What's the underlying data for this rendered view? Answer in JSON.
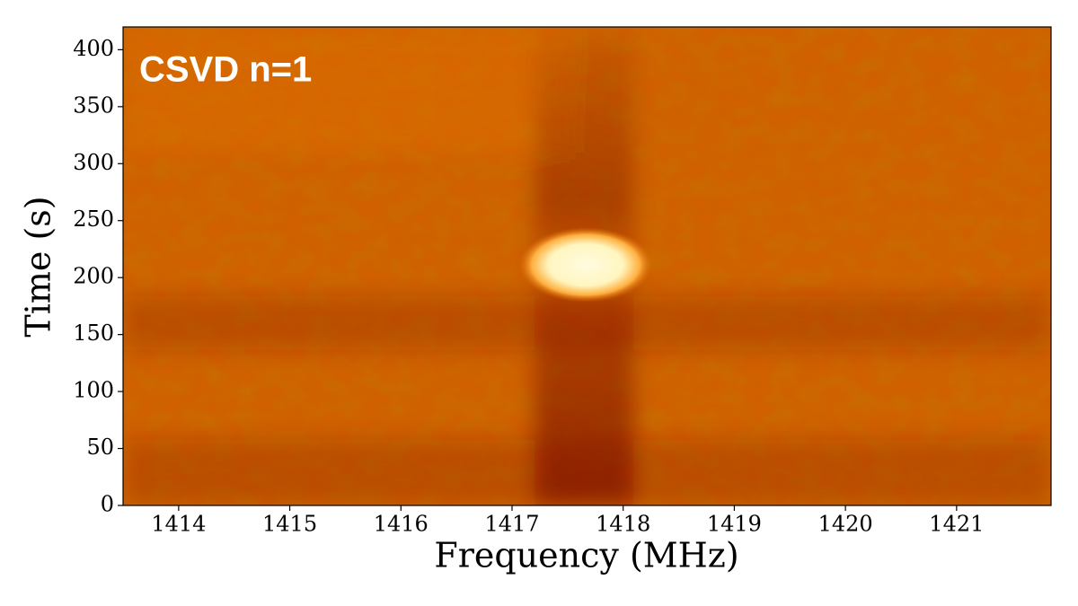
{
  "chart_data": {
    "type": "heatmap",
    "xlabel": "Frequency (MHz)",
    "ylabel": "Time (s)",
    "annotation": "CSVD n=1",
    "xlim": [
      1413.5,
      1421.85
    ],
    "xticks": [
      1414,
      1415,
      1416,
      1417,
      1418,
      1419,
      1420,
      1421
    ],
    "ylim": [
      0,
      420
    ],
    "yticks": [
      0,
      50,
      100,
      150,
      200,
      250,
      300,
      350,
      400
    ]
  }
}
